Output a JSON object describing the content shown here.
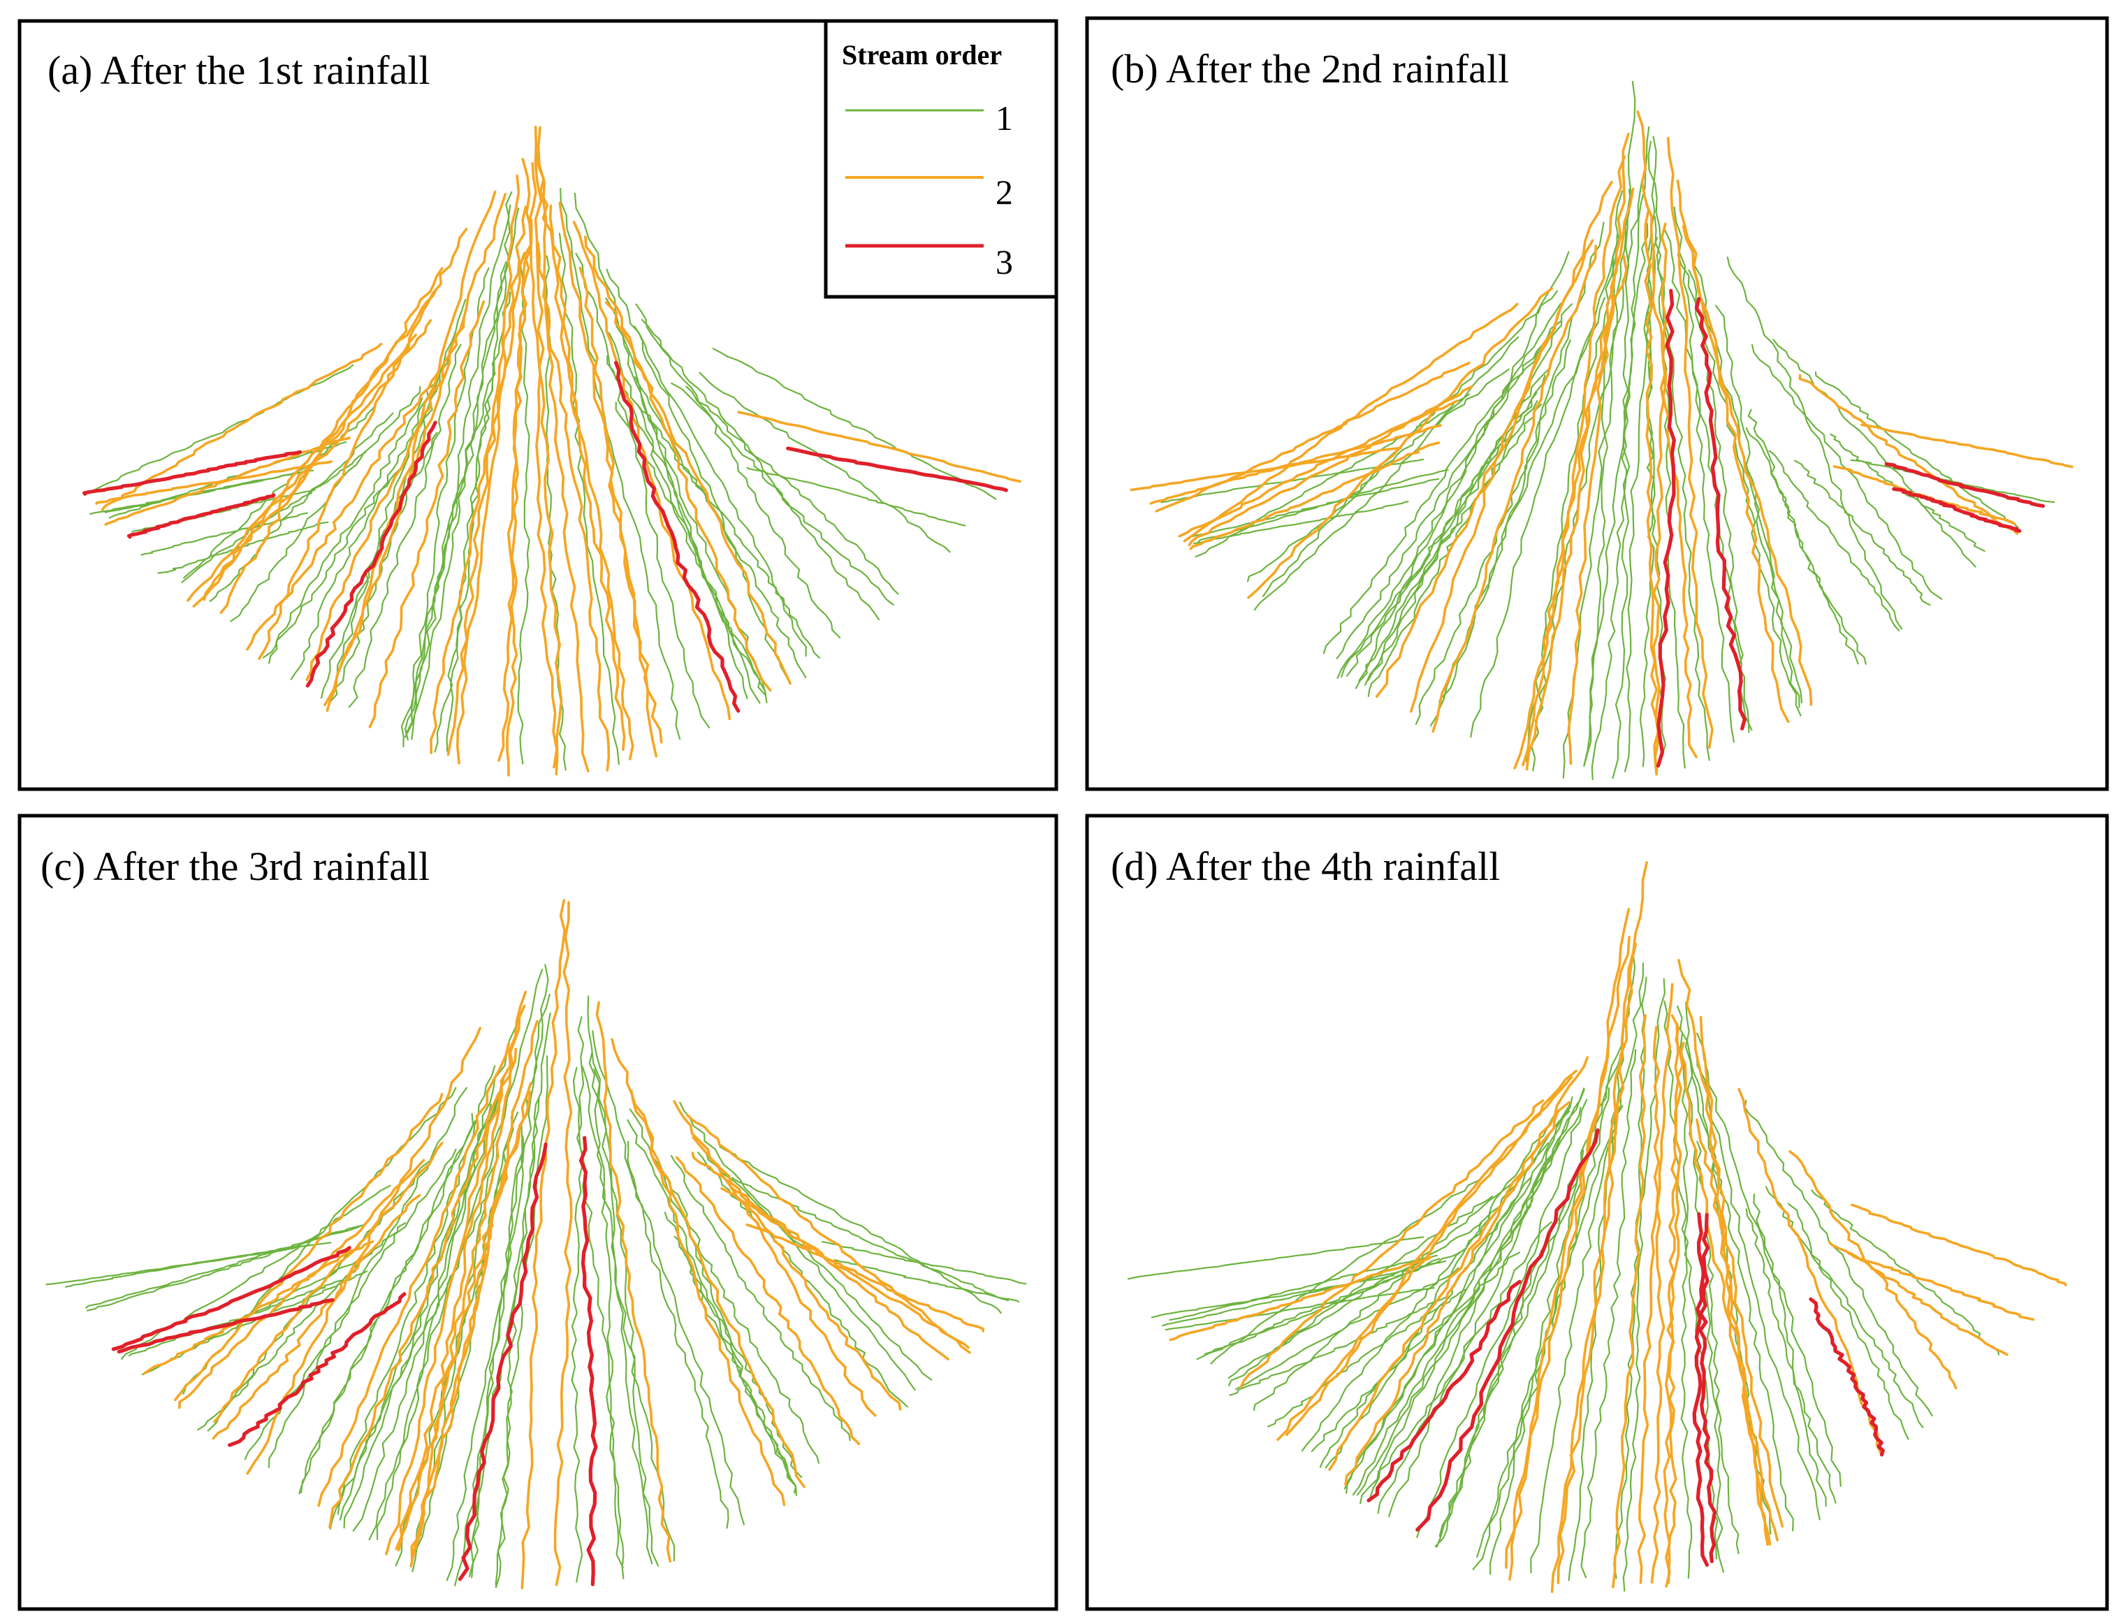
{
  "figure": {
    "panels": [
      {
        "id": "a",
        "title": "(a) After the 1st rainfall",
        "seed": 11,
        "n_order1": 46,
        "n_order2": 30,
        "n_order3": 5
      },
      {
        "id": "b",
        "title": "(b) After the 2nd rainfall",
        "seed": 23,
        "n_order1": 50,
        "n_order2": 24,
        "n_order3": 4
      },
      {
        "id": "c",
        "title": "(c) After the 3rd rainfall",
        "seed": 37,
        "n_order1": 52,
        "n_order2": 26,
        "n_order3": 5
      },
      {
        "id": "d",
        "title": "(d) After the 4th rainfall",
        "seed": 53,
        "n_order1": 52,
        "n_order2": 24,
        "n_order3": 5
      }
    ],
    "legend": {
      "title": "Stream order",
      "items": [
        {
          "label": "1",
          "color": "#6db33f"
        },
        {
          "label": "2",
          "color": "#f5a623"
        },
        {
          "label": "3",
          "color": "#e0202a"
        }
      ]
    }
  }
}
